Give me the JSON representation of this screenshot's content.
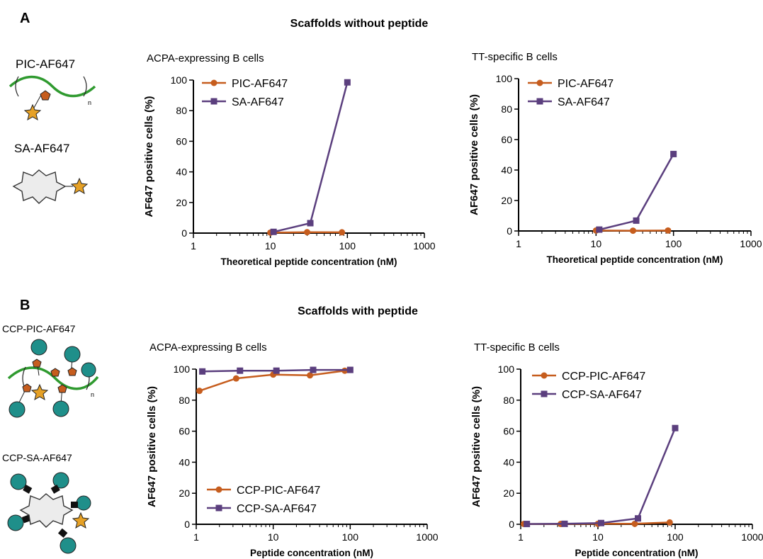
{
  "panels": [
    {
      "letter": "A",
      "heading": "Scaffolds without peptide",
      "schematics": [
        {
          "label": "PIC-AF647",
          "icon": "pic-polymer-dye-icon"
        },
        {
          "label": "SA-AF647",
          "icon": "streptavidin-dye-icon"
        }
      ]
    },
    {
      "letter": "B",
      "heading": "Scaffolds with peptide",
      "schematics": [
        {
          "label": "CCP-PIC-AF647",
          "icon": "ccp-pic-polymer-icon"
        },
        {
          "label": "CCP-SA-AF647",
          "icon": "ccp-streptavidin-icon"
        }
      ]
    }
  ],
  "colors": {
    "pic": "#c65d1e",
    "sa": "#5b3f7e",
    "dye": "#e6a126",
    "peptide": "#1f8f8a",
    "polymer": "#2f9a2f"
  },
  "chart_data": [
    {
      "type": "line",
      "title": "ACPA-expressing B cells",
      "xlabel": "Theoretical peptide concentration (nM)",
      "ylabel": "AF647 positive cells  (%)",
      "xscale": "log",
      "xlim": [
        1,
        1000
      ],
      "ylim": [
        0,
        100
      ],
      "xticks": [
        1,
        10,
        100,
        1000
      ],
      "yticks": [
        0,
        20,
        40,
        60,
        80,
        100
      ],
      "legend": "top-left",
      "series": [
        {
          "name": "PIC-AF647",
          "marker": "circle",
          "color": "#c65d1e",
          "x": [
            10,
            30,
            85
          ],
          "y": [
            0.3,
            0.6,
            0.5
          ]
        },
        {
          "name": "SA-AF647",
          "marker": "square",
          "color": "#5b3f7e",
          "x": [
            11,
            33,
            100
          ],
          "y": [
            0.8,
            6.5,
            98.5
          ]
        }
      ]
    },
    {
      "type": "line",
      "title": "TT-specific B cells",
      "xlabel": "Theoretical peptide concentration (nM)",
      "ylabel": "AF647 positive cells  (%)",
      "xscale": "log",
      "xlim": [
        1,
        1000
      ],
      "ylim": [
        0,
        100
      ],
      "xticks": [
        1,
        10,
        100,
        1000
      ],
      "yticks": [
        0,
        20,
        40,
        60,
        80,
        100
      ],
      "legend": "top-left",
      "series": [
        {
          "name": "PIC-AF647",
          "marker": "circle",
          "color": "#c65d1e",
          "x": [
            10,
            30,
            85
          ],
          "y": [
            0.3,
            0.2,
            0.3
          ]
        },
        {
          "name": "SA-AF647",
          "marker": "square",
          "color": "#5b3f7e",
          "x": [
            11,
            33,
            100
          ],
          "y": [
            0.9,
            6.8,
            50.5
          ]
        }
      ]
    },
    {
      "type": "line",
      "title": "ACPA-expressing B cells",
      "xlabel": "Peptide concentration (nM)",
      "ylabel": "AF647 positive cells  (%)",
      "xscale": "log",
      "xlim": [
        1,
        1000
      ],
      "ylim": [
        0,
        100
      ],
      "xticks": [
        1,
        10,
        100,
        1000
      ],
      "yticks": [
        0,
        20,
        40,
        60,
        80,
        100
      ],
      "legend": "bottom-left",
      "series": [
        {
          "name": "CCP-PIC-AF647",
          "marker": "circle",
          "color": "#c65d1e",
          "x": [
            1.1,
            3.3,
            10,
            30,
            85
          ],
          "y": [
            86,
            94,
            96.5,
            96,
            99
          ]
        },
        {
          "name": "CCP-SA-AF647",
          "marker": "square",
          "color": "#5b3f7e",
          "x": [
            1.2,
            3.7,
            11,
            33,
            100
          ],
          "y": [
            98.5,
            99,
            99,
            99.5,
            99.5
          ]
        }
      ]
    },
    {
      "type": "line",
      "title": "TT-specific B cells",
      "xlabel": "Peptide concentration (nM)",
      "ylabel": "AF647 positive cells  (%)",
      "xscale": "log",
      "xlim": [
        1,
        1000
      ],
      "ylim": [
        0,
        100
      ],
      "xticks": [
        1,
        10,
        100,
        1000
      ],
      "yticks": [
        0,
        20,
        40,
        60,
        80,
        100
      ],
      "legend": "top-left",
      "series": [
        {
          "name": "CCP-PIC-AF647",
          "marker": "circle",
          "color": "#c65d1e",
          "x": [
            1.1,
            3.3,
            10,
            30,
            85
          ],
          "y": [
            0.2,
            0.2,
            0.3,
            0.3,
            1.2
          ]
        },
        {
          "name": "CCP-SA-AF647",
          "marker": "square",
          "color": "#5b3f7e",
          "x": [
            1.2,
            3.7,
            11,
            33,
            100
          ],
          "y": [
            0.2,
            0.3,
            0.8,
            3.8,
            62
          ]
        }
      ]
    }
  ]
}
